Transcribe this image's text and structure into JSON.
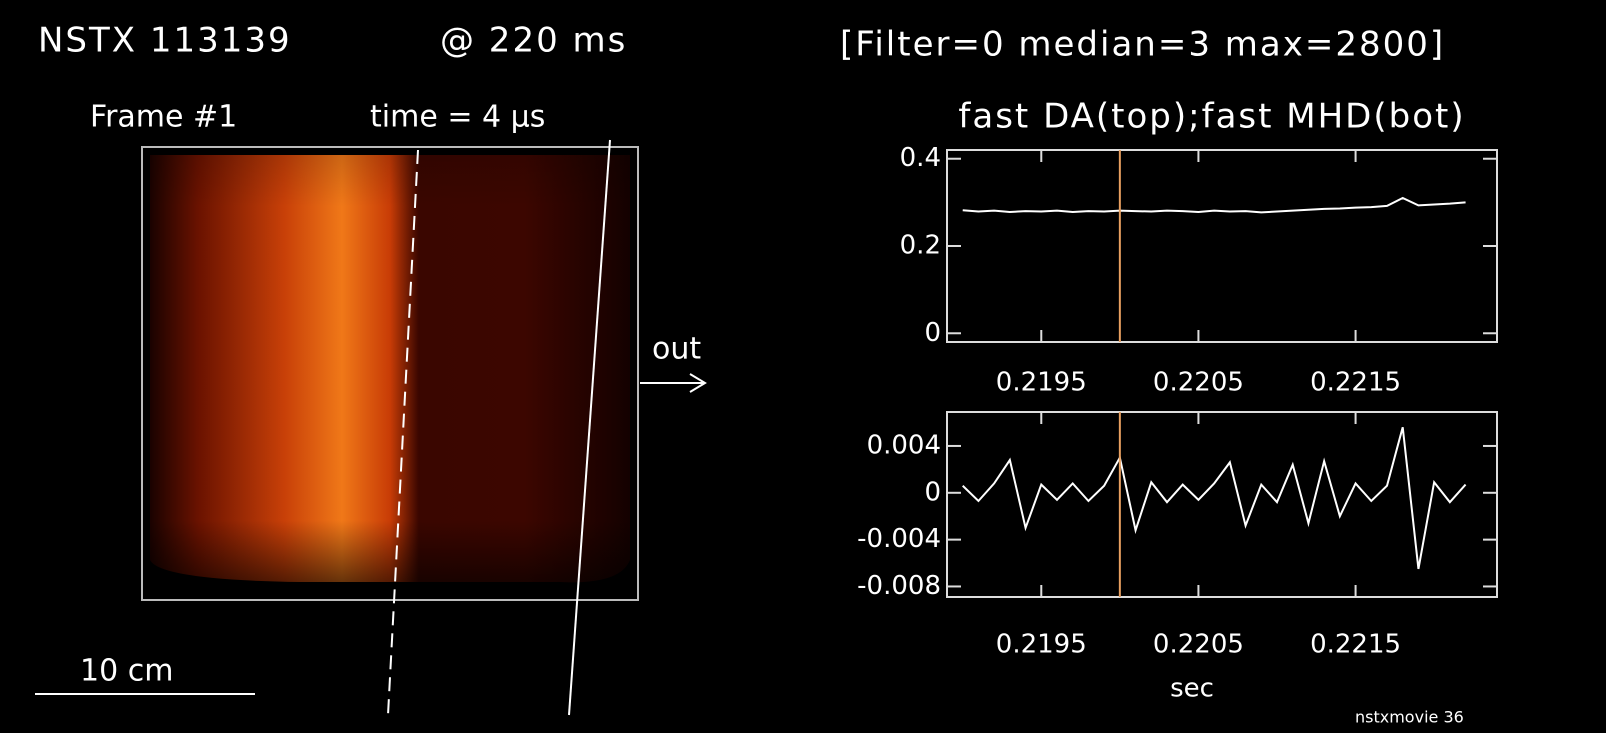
{
  "header": {
    "shot": "NSTX 113139",
    "time": "@ 220 ms",
    "settings": "[Filter=0  median=3  max=2800]"
  },
  "image_panel": {
    "frame": "Frame #1",
    "frame_time": "time = 4 μs",
    "direction": "out",
    "scale": "10 cm",
    "footer": "nstxmovie 36"
  },
  "chart_data": [
    {
      "type": "line",
      "title": "fast DA(top);fast MHD(bot)",
      "x": [
        0.219,
        0.2191,
        0.2192,
        0.2193,
        0.2194,
        0.2195,
        0.2196,
        0.2197,
        0.2198,
        0.2199,
        0.22,
        0.2201,
        0.2202,
        0.2203,
        0.2204,
        0.2205,
        0.2206,
        0.2207,
        0.2208,
        0.2209,
        0.221,
        0.2211,
        0.2212,
        0.2213,
        0.2214,
        0.2215,
        0.2216,
        0.2217,
        0.2218,
        0.2219,
        0.222,
        0.2221,
        0.2222
      ],
      "series": [
        {
          "color": "#ffffff",
          "values": [
            0.282,
            0.279,
            0.281,
            0.278,
            0.28,
            0.279,
            0.281,
            0.278,
            0.28,
            0.279,
            0.281,
            0.28,
            0.279,
            0.281,
            0.28,
            0.278,
            0.281,
            0.279,
            0.28,
            0.277,
            0.279,
            0.281,
            0.283,
            0.285,
            0.286,
            0.288,
            0.289,
            0.292,
            0.31,
            0.293,
            0.295,
            0.297,
            0.3
          ]
        }
      ],
      "marker_x": 0.22,
      "marker_color": "#e8a060",
      "xlim": [
        0.2189,
        0.2224
      ],
      "xticks": [
        0.2195,
        0.2205,
        0.2215
      ],
      "ylim": [
        -0.02,
        0.42
      ],
      "yticks": [
        0,
        0.2,
        0.4
      ]
    },
    {
      "type": "line",
      "x_label": "sec",
      "x": [
        0.219,
        0.2191,
        0.2192,
        0.2193,
        0.2194,
        0.2195,
        0.2196,
        0.2197,
        0.2198,
        0.2199,
        0.22,
        0.2201,
        0.2202,
        0.2203,
        0.2204,
        0.2205,
        0.2206,
        0.2207,
        0.2208,
        0.2209,
        0.221,
        0.2211,
        0.2212,
        0.2213,
        0.2214,
        0.2215,
        0.2216,
        0.2217,
        0.2218,
        0.2219,
        0.222,
        0.2221,
        0.2222
      ],
      "series": [
        {
          "color": "#ffffff",
          "values": [
            0.0006,
            -0.0007,
            0.0008,
            0.0028,
            -0.003,
            0.0007,
            -0.0006,
            0.0008,
            -0.0007,
            0.0006,
            0.003,
            -0.0032,
            0.0009,
            -0.0008,
            0.0007,
            -0.0006,
            0.0008,
            0.0026,
            -0.0028,
            0.0007,
            -0.0008,
            0.0024,
            -0.0026,
            0.0027,
            -0.002,
            0.0008,
            -0.0007,
            0.0006,
            0.0056,
            -0.0065,
            0.0009,
            -0.0008,
            0.0007
          ]
        }
      ],
      "marker_x": 0.22,
      "marker_color": "#e8a060",
      "xlim": [
        0.2189,
        0.2224
      ],
      "xticks": [
        0.2195,
        0.2205,
        0.2215
      ],
      "ylim": [
        -0.0089,
        0.0069
      ],
      "yticks": [
        0.004,
        0,
        -0.004,
        -0.008
      ]
    }
  ]
}
